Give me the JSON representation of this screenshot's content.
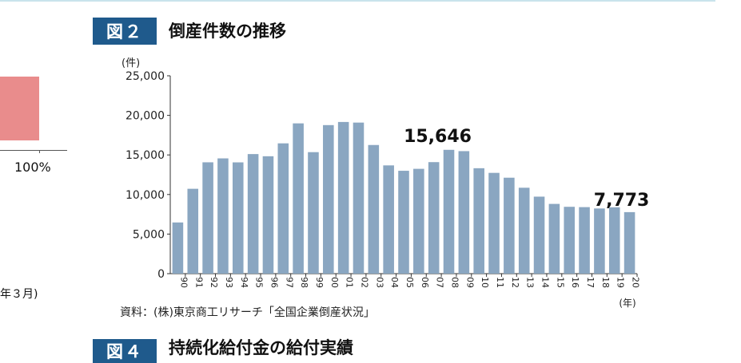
{
  "figure2": {
    "badge": "図２",
    "title": "倒産件数の推移"
  },
  "figure4": {
    "badge": "図４",
    "title": "持続化給付金の給付実績"
  },
  "source": "資料：(株)東京商工リサーチ「全国企業倒産状況」",
  "left_panel": {
    "percent_label": "100%",
    "date_label": "年３月)"
  },
  "colors": {
    "bar": "#8aa6c1",
    "badge": "#1f5a8c",
    "left_bar": "#e98c8c"
  },
  "chart_data": {
    "type": "bar",
    "title": "倒産件数の推移",
    "ylabel": "(件)",
    "xlabel": "(年)",
    "ylim": [
      0,
      25000
    ],
    "yticks": [
      0,
      5000,
      10000,
      15000,
      20000,
      25000
    ],
    "ytick_labels": [
      "0",
      "5,000",
      "10,000",
      "15,000",
      "20,000",
      "25,000"
    ],
    "categories": [
      "90",
      "91",
      "92",
      "93",
      "94",
      "95",
      "96",
      "97",
      "98",
      "99",
      "00",
      "01",
      "02",
      "03",
      "04",
      "05",
      "06",
      "07",
      "08",
      "09",
      "10",
      "11",
      "12",
      "13",
      "14",
      "15",
      "16",
      "17",
      "18",
      "19",
      "20"
    ],
    "values": [
      6468,
      10723,
      14069,
      14564,
      14061,
      15108,
      14834,
      16464,
      18988,
      15352,
      18769,
      19164,
      19087,
      16255,
      13679,
      12998,
      13245,
      14091,
      15646,
      15480,
      13321,
      12734,
      12124,
      10855,
      9731,
      8812,
      8446,
      8405,
      8235,
      8383,
      7773
    ],
    "annotations": [
      {
        "category": "08",
        "text": "15,646"
      },
      {
        "category": "20",
        "text": "7,773"
      }
    ],
    "grid": false,
    "legend": "none"
  }
}
